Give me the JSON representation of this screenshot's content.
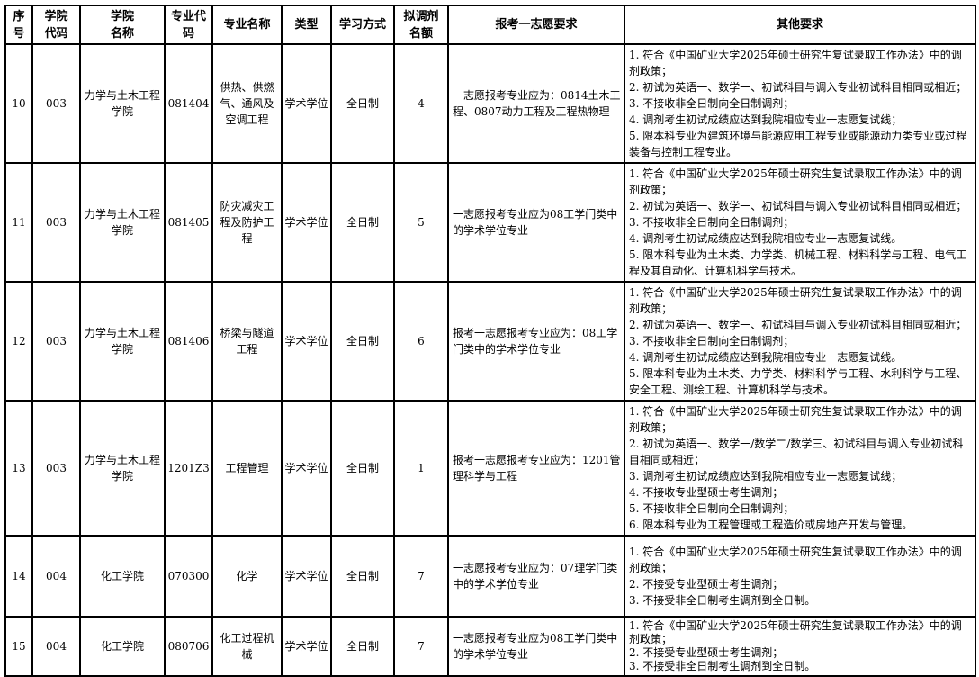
{
  "table": {
    "headers": [
      {
        "key": "index",
        "label": "序\n号"
      },
      {
        "key": "college_code",
        "label": "学院\n代码"
      },
      {
        "key": "college_name",
        "label": "学院\n名称"
      },
      {
        "key": "major_code",
        "label": "专业代\n码"
      },
      {
        "key": "major_name",
        "label": "专业名称"
      },
      {
        "key": "type",
        "label": "类型"
      },
      {
        "key": "study_mode",
        "label": "学习方式"
      },
      {
        "key": "quota",
        "label": "拟调剂\n名额"
      },
      {
        "key": "first_choice_requirement",
        "label": "报考一志愿要求"
      },
      {
        "key": "other_requirements",
        "label": "其他要求"
      }
    ],
    "rows": [
      {
        "index": "10",
        "college_code": "003",
        "college_name": "力学与土木工程学院",
        "major_code": "081404",
        "major_name": "供热、供燃气、通风及空调工程",
        "type": "学术学位",
        "study_mode": "全日制",
        "quota": "4",
        "first_choice_requirement": "一志愿报考专业应为：0814土木工程、0807动力工程及工程热物理",
        "other_requirements": [
          "1. 符合《中国矿业大学2025年硕士研究生复试录取工作办法》中的调剂政策；",
          "2. 初试为英语一、数学一、初试科目与调入专业初试科目相同或相近；",
          "3. 不接收非全日制向全日制调剂；",
          "4. 调剂考生初试成绩应达到我院相应专业一志愿复试线；",
          "5. 限本科专业为建筑环境与能源应用工程专业或能源动力类专业或过程装备与控制工程专业。"
        ]
      },
      {
        "index": "11",
        "college_code": "003",
        "college_name": "力学与土木工程学院",
        "major_code": "081405",
        "major_name": "防灾减灾工程及防护工程",
        "type": "学术学位",
        "study_mode": "全日制",
        "quota": "5",
        "first_choice_requirement": "一志愿报考专业应为08工学门类中的学术学位专业",
        "other_requirements": [
          "1. 符合《中国矿业大学2025年硕士研究生复试录取工作办法》中的调剂政策；",
          "2. 初试为英语一、数学一、初试科目与调入专业初试科目相同或相近；",
          "3. 不接收非全日制向全日制调剂；",
          "4. 调剂考生初试成绩应达到我院相应专业一志愿复试线。",
          "5. 限本科专业为土木类、力学类、机械工程、材料科学与工程、电气工程及其自动化、计算机科学与技术。"
        ]
      },
      {
        "index": "12",
        "college_code": "003",
        "college_name": "力学与土木工程学院",
        "major_code": "081406",
        "major_name": "桥梁与隧道工程",
        "type": "学术学位",
        "study_mode": "全日制",
        "quota": "6",
        "first_choice_requirement": "报考一志愿报考专业应为：08工学门类中的学术学位专业",
        "other_requirements": [
          "1. 符合《中国矿业大学2025年硕士研究生复试录取工作办法》中的调剂政策；",
          "2. 初试为英语一、数学一、初试科目与调入专业初试科目相同或相近；",
          "3. 不接收非全日制向全日制调剂；",
          "4. 调剂考生初试成绩应达到我院相应专业一志愿复试线。",
          "5. 限本科专业为土木类、力学类、材料科学与工程、水利科学与工程、安全工程、测绘工程、计算机科学与技术。"
        ]
      },
      {
        "index": "13",
        "college_code": "003",
        "college_name": "力学与土木工程学院",
        "major_code": "1201Z3",
        "major_name": "工程管理",
        "type": "学术学位",
        "study_mode": "全日制",
        "quota": "1",
        "first_choice_requirement": "报考一志愿报考专业应为：1201管理科学与工程",
        "other_requirements": [
          "1. 符合《中国矿业大学2025年硕士研究生复试录取工作办法》中的调剂政策；",
          "2. 初试为英语一、数学一/数学二/数学三、初试科目与调入专业初试科目相同或相近；",
          "3. 调剂考生初试成绩应达到我院相应专业一志愿复试线；",
          "4. 不接收专业型硕士考生调剂；",
          "5. 不接收非全日制向全日制调剂；",
          "6. 限本科专业为工程管理或工程造价或房地产开发与管理。"
        ]
      },
      {
        "index": "14",
        "college_code": "004",
        "college_name": "化工学院",
        "major_code": "070300",
        "major_name": "化学",
        "type": "学术学位",
        "study_mode": "全日制",
        "quota": "7",
        "first_choice_requirement": "一志愿报考专业应为：07理学门类中的学术学位专业",
        "other_requirements": [
          "1. 符合《中国矿业大学2025年硕士研究生复试录取工作办法》中的调剂政策；",
          "2. 不接受专业型硕士考生调剂；",
          "3. 不接受非全日制考生调剂到全日制。"
        ]
      },
      {
        "index": "15",
        "college_code": "004",
        "college_name": "化工学院",
        "major_code": "080706",
        "major_name": "化工过程机械",
        "type": "学术学位",
        "study_mode": "全日制",
        "quota": "7",
        "first_choice_requirement": "一志愿报考专业应为08工学门类中的学术学位专业",
        "other_requirements": [
          "1. 符合《中国矿业大学2025年硕士研究生复试录取工作办法》中的调剂政策；",
          "2. 不接受专业型硕士考生调剂；",
          "3. 不接受非全日制考生调剂到全日制。"
        ]
      }
    ]
  }
}
